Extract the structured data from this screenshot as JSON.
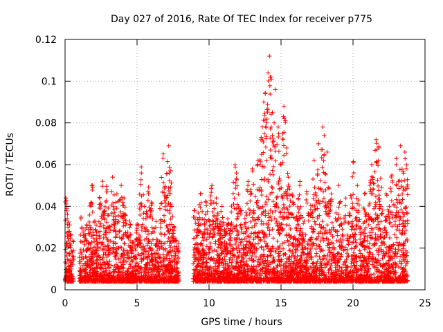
{
  "chart_data": {
    "type": "scatter",
    "title": "Day 027 of 2016, Rate Of TEC Index for receiver p775",
    "xlabel": "GPS time / hours",
    "ylabel": "ROTI / TECUs",
    "xlim": [
      0,
      25
    ],
    "ylim": [
      0,
      0.12
    ],
    "xticks": [
      0,
      5,
      10,
      15,
      20,
      25
    ],
    "xtick_labels": [
      "0",
      "5",
      "10",
      "15",
      "20",
      "25"
    ],
    "yticks": [
      0,
      0.02,
      0.04,
      0.06,
      0.08,
      0.1,
      0.12
    ],
    "ytick_labels": [
      "0",
      "0.02",
      "0.04",
      "0.06",
      "0.08",
      "0.1",
      "0.12"
    ],
    "grid": true,
    "marker": "+",
    "marker_color": "#ff0000",
    "series": [
      {
        "name": "ROTI",
        "points": [
          [
            0.05,
            0.044
          ],
          [
            0.1,
            0.038
          ],
          [
            0.15,
            0.034
          ],
          [
            0.2,
            0.03
          ],
          [
            0.3,
            0.028
          ],
          [
            0.35,
            0.022
          ],
          [
            0.5,
            0.018
          ],
          [
            1.1,
            0.034
          ],
          [
            1.5,
            0.03
          ],
          [
            1.8,
            0.04
          ],
          [
            1.9,
            0.05
          ],
          [
            2.4,
            0.044
          ],
          [
            2.6,
            0.052
          ],
          [
            2.9,
            0.048
          ],
          [
            3.3,
            0.054
          ],
          [
            3.6,
            0.046
          ],
          [
            3.9,
            0.05
          ],
          [
            4.1,
            0.044
          ],
          [
            4.5,
            0.03
          ],
          [
            5.3,
            0.056
          ],
          [
            5.5,
            0.04
          ],
          [
            5.8,
            0.046
          ],
          [
            6.0,
            0.042
          ],
          [
            6.3,
            0.03
          ],
          [
            6.8,
            0.063
          ],
          [
            7.2,
            0.069
          ],
          [
            7.0,
            0.045
          ],
          [
            7.4,
            0.04
          ],
          [
            9.0,
            0.038
          ],
          [
            9.4,
            0.046
          ],
          [
            9.8,
            0.042
          ],
          [
            10.2,
            0.05
          ],
          [
            10.5,
            0.044
          ],
          [
            10.9,
            0.04
          ],
          [
            11.3,
            0.034
          ],
          [
            11.8,
            0.06
          ],
          [
            11.9,
            0.056
          ],
          [
            12.2,
            0.038
          ],
          [
            12.7,
            0.05
          ],
          [
            13.0,
            0.058
          ],
          [
            13.4,
            0.062
          ],
          [
            13.6,
            0.072
          ],
          [
            13.8,
            0.09
          ],
          [
            13.9,
            0.094
          ],
          [
            14.0,
            0.08
          ],
          [
            14.1,
            0.104
          ],
          [
            14.2,
            0.112
          ],
          [
            14.3,
            0.102
          ],
          [
            14.4,
            0.085
          ],
          [
            14.6,
            0.096
          ],
          [
            14.8,
            0.078
          ],
          [
            15.2,
            0.088
          ],
          [
            15.3,
            0.081
          ],
          [
            15.4,
            0.068
          ],
          [
            15.5,
            0.054
          ],
          [
            15.8,
            0.045
          ],
          [
            16.3,
            0.05
          ],
          [
            16.8,
            0.046
          ],
          [
            17.3,
            0.062
          ],
          [
            17.6,
            0.07
          ],
          [
            17.9,
            0.078
          ],
          [
            18.0,
            0.074
          ],
          [
            18.2,
            0.066
          ],
          [
            18.5,
            0.046
          ],
          [
            19.0,
            0.05
          ],
          [
            19.5,
            0.044
          ],
          [
            20.0,
            0.061
          ],
          [
            20.3,
            0.05
          ],
          [
            20.8,
            0.046
          ],
          [
            21.3,
            0.06
          ],
          [
            21.6,
            0.072
          ],
          [
            21.8,
            0.068
          ],
          [
            22.3,
            0.046
          ],
          [
            22.7,
            0.055
          ],
          [
            23.0,
            0.06
          ],
          [
            23.3,
            0.069
          ],
          [
            23.6,
            0.066
          ],
          [
            23.7,
            0.058
          ]
        ]
      }
    ]
  }
}
